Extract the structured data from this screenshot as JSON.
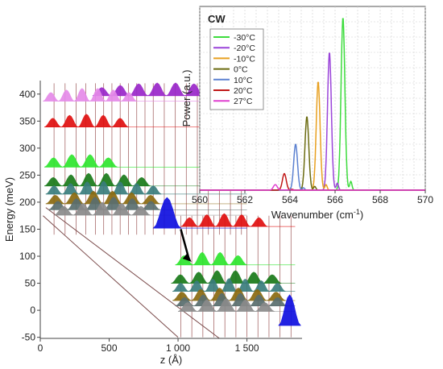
{
  "chart_data": [
    {
      "type": "line",
      "subtype": "band-diagram-wavefunctions",
      "xlabel": "z (Å)",
      "ylabel": "Energy (meV)",
      "xlim": [
        0,
        1900
      ],
      "ylim": [
        -52,
        425
      ],
      "x_ticks": [
        "0",
        "500",
        "1 000",
        "1 500"
      ],
      "y_ticks": [
        "-50",
        "0",
        "50",
        "100",
        "150",
        "200",
        "250",
        "300",
        "350",
        "400"
      ],
      "grid": false,
      "annotations": [
        "arrow marks the laser transition"
      ],
      "left_module_levels": [
        {
          "energy": 397,
          "color": "#9a27c9",
          "x_range": [
            380,
            1450
          ],
          "peaks": 8
        },
        {
          "energy": 387,
          "color": "#e58ae9",
          "x_range": [
            20,
            700
          ],
          "peaks": 6
        },
        {
          "energy": 339,
          "color": "#e01010",
          "x_range": [
            30,
            640
          ],
          "peaks": 5
        },
        {
          "energy": 265,
          "color": "#2ee62e",
          "x_range": [
            30,
            560
          ],
          "peaks": 4
        },
        {
          "energy": 230,
          "color": "#1a7a1a",
          "x_range": [
            30,
            800
          ],
          "peaks": 6
        },
        {
          "energy": 215,
          "color": "#3a7d7d",
          "x_range": [
            40,
            880
          ],
          "peaks": 7
        },
        {
          "energy": 197,
          "color": "#8a6a10",
          "x_range": [
            40,
            870
          ],
          "peaks": 6
        },
        {
          "energy": 186,
          "color": "#5a6e6e",
          "x_range": [
            60,
            870
          ],
          "peaks": 6
        },
        {
          "energy": 176,
          "color": "#8a8a8a",
          "x_range": [
            100,
            800
          ],
          "peaks": 5
        },
        {
          "energy": 152,
          "color": "#1010e0",
          "x_range": [
            820,
            1020
          ],
          "peaks": 1
        }
      ],
      "right_module_levels": [
        {
          "energy": 155,
          "color": "#e01010",
          "x_range": [
            1020,
            1650
          ],
          "peaks": 5
        },
        {
          "energy": 84,
          "color": "#2ee62e",
          "x_range": [
            980,
            1500
          ],
          "peaks": 4
        },
        {
          "energy": 50,
          "color": "#1a7a1a",
          "x_range": [
            950,
            1750
          ],
          "peaks": 6
        },
        {
          "energy": 35,
          "color": "#3a7d7d",
          "x_range": [
            960,
            1780
          ],
          "peaks": 7
        },
        {
          "energy": 18,
          "color": "#8a6a10",
          "x_range": [
            960,
            1780
          ],
          "peaks": 6
        },
        {
          "energy": 8,
          "color": "#5a6e6e",
          "x_range": [
            980,
            1790
          ],
          "peaks": 6
        },
        {
          "energy": -2,
          "color": "#8a8a8a",
          "x_range": [
            1000,
            1700
          ],
          "peaks": 5
        },
        {
          "energy": -28,
          "color": "#1010e0",
          "x_range": [
            1730,
            1890
          ],
          "peaks": 1
        }
      ]
    },
    {
      "type": "line",
      "title": "CW",
      "xlabel": "Wavenumber (cm⁻¹)",
      "ylabel": "Power (a.u.)",
      "xlim": [
        560,
        570
      ],
      "x_ticks": [
        "560",
        "562",
        "564",
        "566",
        "568",
        "570"
      ],
      "ylim": [
        0,
        1
      ],
      "grid": true,
      "legend_position": "top-left",
      "series": [
        {
          "name": "-30°C",
          "color": "#3ddc3d",
          "peak_x": 566.35,
          "peak_y": 0.94
        },
        {
          "name": "-20°C",
          "color": "#9a44d9",
          "peak_x": 565.75,
          "peak_y": 0.75
        },
        {
          "name": "-10°C",
          "color": "#e8a020",
          "peak_x": 565.25,
          "peak_y": 0.59
        },
        {
          "name": "0°C",
          "color": "#6b6b10",
          "peak_x": 564.75,
          "peak_y": 0.4
        },
        {
          "name": "10°C",
          "color": "#5b80d0",
          "peak_x": 564.25,
          "peak_y": 0.25
        },
        {
          "name": "20°C",
          "color": "#c01818",
          "peak_x": 563.75,
          "peak_y": 0.09
        },
        {
          "name": "27°C",
          "color": "#e040d0",
          "peak_x": 563.35,
          "peak_y": 0.03
        }
      ]
    }
  ]
}
